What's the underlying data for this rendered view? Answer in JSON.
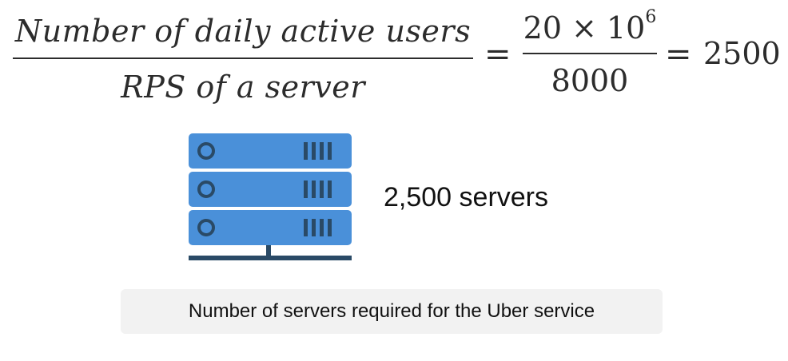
{
  "equation": {
    "numerator_text": "Number of daily active users",
    "denominator_text": "RPS of a server",
    "equals": "=",
    "middle_numerator": "20 × 10",
    "middle_exponent": "6",
    "middle_denominator": "8000",
    "result": "2500"
  },
  "servers_label": "2,500 servers",
  "caption": "Number of servers required for the Uber service",
  "colors": {
    "server_body": "#4a90d9",
    "server_dark": "#2a4a66",
    "text": "#2c2c2c",
    "caption_bg": "#f2f2f2"
  }
}
